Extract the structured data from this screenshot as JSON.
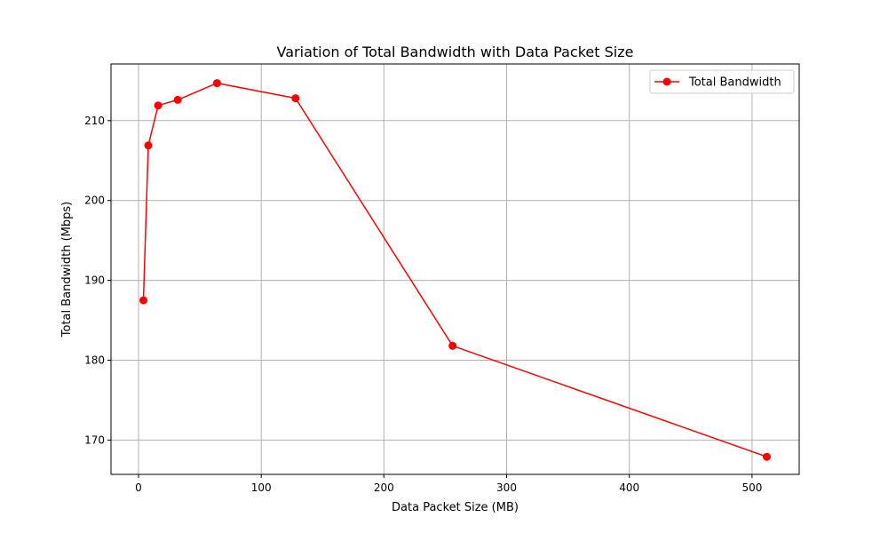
{
  "chart_data": {
    "type": "line",
    "title": "Variation of Total Bandwidth with Data Packet Size",
    "xlabel": "Data Packet Size (MB)",
    "ylabel": "Total Bandwidth (Mbps)",
    "xlim": [
      -22.4,
      538.4
    ],
    "ylim": [
      165.7,
      217.1
    ],
    "xticks": [
      0,
      100,
      200,
      300,
      400,
      500
    ],
    "yticks": [
      170,
      180,
      190,
      200,
      210
    ],
    "grid": true,
    "legend_position": "upper right",
    "series": [
      {
        "name": "Total Bandwidth",
        "color": "#ff0000",
        "marker": "circle",
        "x": [
          4,
          8,
          16,
          32,
          64,
          128,
          256,
          512
        ],
        "y": [
          187.5,
          206.9,
          211.9,
          212.6,
          214.7,
          212.8,
          181.8,
          167.9
        ]
      }
    ]
  }
}
